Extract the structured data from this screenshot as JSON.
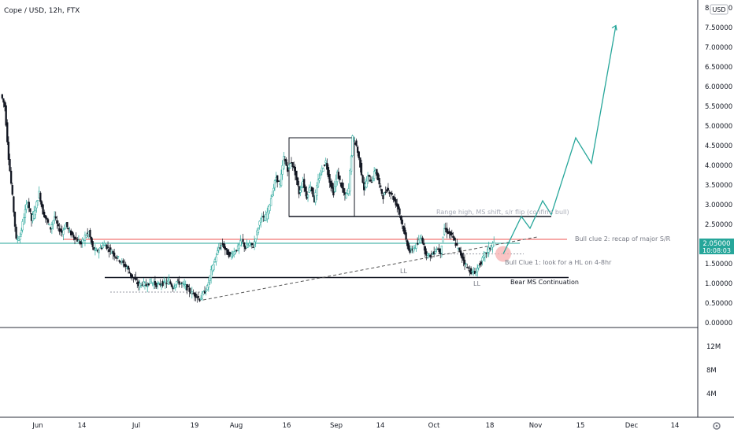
{
  "header": {
    "title": "Cope / USD, 12h, FTX"
  },
  "currency_badge": "USD",
  "colors": {
    "up": "#26a69a",
    "down": "#131722",
    "forecast": "#26a69a",
    "support_resistance": "#ef5350",
    "range_box": "#131722",
    "price_badge_bg": "#26a69a",
    "grid": "#f0f3fa",
    "highlight_circle": "#f7b0b0"
  },
  "chart_data": {
    "type": "candlestick",
    "price_axis": {
      "range": [
        -0.05,
        8.05
      ],
      "ticks": [
        "8.00000",
        "7.50000",
        "7.00000",
        "6.50000",
        "6.00000",
        "5.50000",
        "5.00000",
        "4.50000",
        "4.00000",
        "3.50000",
        "3.00000",
        "2.50000",
        "2.00000",
        "1.50000",
        "1.00000",
        "0.50000",
        "0.00000"
      ]
    },
    "volume_axis": {
      "ticks": [
        "12M",
        "8M",
        "4M"
      ]
    },
    "time_axis": {
      "labels": [
        "Jun",
        "14",
        "Jul",
        "19",
        "Aug",
        "16",
        "Sep",
        "14",
        "Oct",
        "18",
        "Nov",
        "15",
        "Dec",
        "14"
      ]
    },
    "current_price": {
      "value": "2.05000",
      "countdown": "10:08:03"
    },
    "series": [
      {
        "name": "Cope / USD",
        "close_path": [
          5.8,
          5.5,
          4.2,
          3.2,
          2.1,
          2.2,
          2.7,
          3.1,
          2.6,
          2.9,
          3.3,
          2.8,
          2.6,
          2.4,
          2.7,
          2.4,
          2.3,
          2.5,
          2.3,
          2.2,
          2.1,
          2.0,
          2.2,
          2.3,
          1.9,
          1.8,
          1.9,
          2.0,
          1.9,
          1.8,
          1.7,
          1.6,
          1.5,
          1.4,
          1.2,
          1.1,
          0.95,
          1.0,
          0.95,
          1.05,
          1.0,
          0.95,
          1.0,
          1.0,
          1.05,
          0.9,
          1.05,
          1.0,
          0.95,
          0.85,
          0.75,
          0.7,
          0.6,
          0.75,
          0.9,
          1.3,
          1.6,
          1.9,
          2.0,
          1.8,
          1.7,
          1.8,
          1.9,
          2.1,
          1.9,
          2.0,
          1.95,
          2.3,
          2.7,
          2.6,
          2.9,
          3.3,
          3.7,
          3.5,
          4.2,
          3.9,
          4.1,
          3.8,
          3.3,
          3.6,
          3.2,
          3.5,
          3.1,
          3.6,
          3.9,
          4.1,
          3.6,
          3.3,
          3.8,
          3.5,
          3.2,
          3.4,
          4.7,
          4.5,
          4.0,
          3.4,
          3.7,
          3.6,
          3.9,
          3.5,
          3.2,
          3.4,
          3.3,
          3.1,
          2.9,
          2.5,
          2.1,
          1.8,
          1.9,
          2.0,
          2.2,
          1.8,
          1.7,
          1.75,
          1.9,
          1.8,
          2.4,
          2.3,
          2.2,
          2.0,
          1.8,
          1.6,
          1.4,
          1.3,
          1.25,
          1.45,
          1.6,
          1.8,
          1.9,
          2.05
        ]
      }
    ],
    "forecast_path": [
      {
        "x": "Oct 20",
        "y": 1.75
      },
      {
        "x": "Oct 23",
        "y": 2.7
      },
      {
        "x": "Oct 26",
        "y": 2.4
      },
      {
        "x": "Oct 29",
        "y": 3.1
      },
      {
        "x": "Nov 1",
        "y": 2.75
      },
      {
        "x": "Nov 10",
        "y": 4.7
      },
      {
        "x": "Nov 16",
        "y": 4.05
      },
      {
        "x": "Nov 27",
        "y": 7.55
      }
    ],
    "levels": [
      {
        "name": "range-high",
        "value": 2.7
      },
      {
        "name": "major-sr",
        "value": 2.12
      },
      {
        "name": "bear-ms",
        "value": 1.15
      },
      {
        "name": "hl-zone",
        "value": 1.75
      }
    ],
    "annotations": {
      "range_high": "Range high, MS shift, s/r flip (confirm bull)",
      "bull_clue_2": "Bull clue 2: recap of major S/R",
      "bull_clue_1": "Bull Clue 1: look for a HL on 4-8hr",
      "bear_ms": "Bear MS Continuation",
      "ll_1": "LL",
      "ll_2": "LL"
    }
  }
}
